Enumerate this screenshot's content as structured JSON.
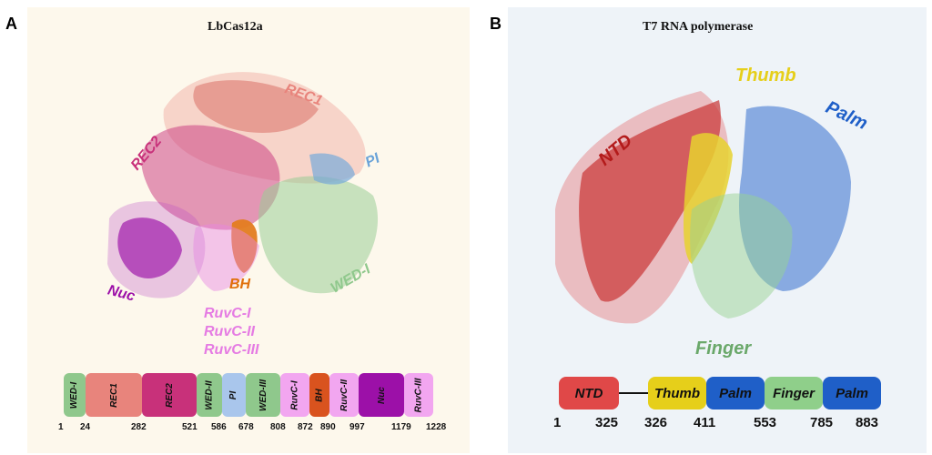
{
  "panel_a": {
    "label": "A",
    "title": "LbCas12a",
    "structure_labels": {
      "rec1": "REC1",
      "rec2": "REC2",
      "pi": "PI",
      "nuc": "Nuc",
      "bh": "BH",
      "wed1": "WED-I",
      "ruvc1": "RuvC-I",
      "ruvc2": "RuvC-II",
      "ruvc3": "RuvC-III"
    },
    "domains": [
      "WED-I",
      "REC1",
      "REC2",
      "WED-II",
      "PI",
      "WED-III",
      "RuvC-I",
      "BH",
      "RuvC-II",
      "Nuc",
      "RuvC-III"
    ],
    "positions": [
      "1",
      "24",
      "282",
      "521",
      "586",
      "678",
      "808",
      "872",
      "890",
      "997",
      "1179",
      "1228"
    ],
    "colors": {
      "rec1": "#e8847c",
      "rec2": "#c8317a",
      "pi": "#6aa3d8",
      "nuc": "#9c10a8",
      "bh": "#e0700a",
      "wed": "#8fc88c",
      "ruvc": "#e57be3"
    }
  },
  "panel_b": {
    "label": "B",
    "title": "T7 RNA polymerase",
    "structure_labels": {
      "ntd": "NTD",
      "thumb": "Thumb",
      "palm": "Palm",
      "finger": "Finger"
    },
    "domains": [
      "NTD",
      "Thumb",
      "Palm",
      "Finger",
      "Palm"
    ],
    "positions": [
      "1",
      "325",
      "326",
      "411",
      "553",
      "785",
      "883"
    ],
    "colors": {
      "ntd": "#e04848",
      "thumb": "#e6cf1a",
      "palm": "#1f5fc8",
      "finger": "#8fcf8a"
    }
  }
}
